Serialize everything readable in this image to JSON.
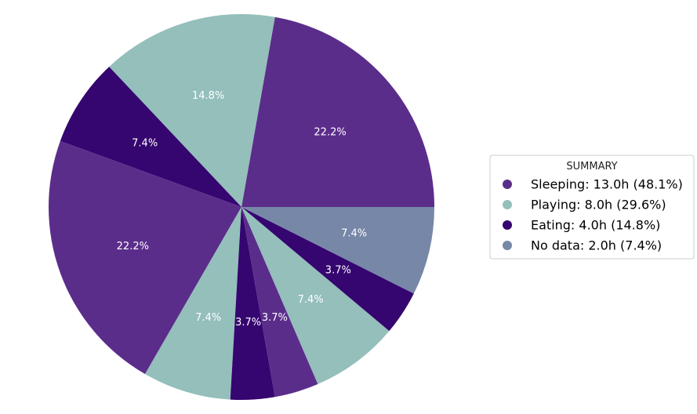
{
  "chart_data": {
    "type": "pie",
    "start_angle_deg": 0,
    "direction": "counterclockwise",
    "slices": [
      {
        "category": "Sleeping",
        "hours": 6.0,
        "label": "22.2%"
      },
      {
        "category": "Playing",
        "hours": 4.0,
        "label": "14.8%"
      },
      {
        "category": "Eating",
        "hours": 2.0,
        "label": "7.4%"
      },
      {
        "category": "Sleeping",
        "hours": 6.0,
        "label": "22.2%"
      },
      {
        "category": "Playing",
        "hours": 2.0,
        "label": "7.4%"
      },
      {
        "category": "Eating",
        "hours": 1.0,
        "label": "3.7%"
      },
      {
        "category": "Sleeping",
        "hours": 1.0,
        "label": "3.7%"
      },
      {
        "category": "Playing",
        "hours": 2.0,
        "label": "7.4%"
      },
      {
        "category": "Eating",
        "hours": 1.0,
        "label": "3.7%"
      },
      {
        "category": "No data",
        "hours": 2.0,
        "label": "7.4%"
      }
    ],
    "colors": {
      "Sleeping": "#5b2d8b",
      "Playing": "#94bfbb",
      "Eating": "#350570",
      "No data": "#7787a7"
    },
    "legend": {
      "title": "SUMMARY",
      "position": "right",
      "entries": [
        {
          "category": "Sleeping",
          "text": "Sleeping: 13.0h (48.1%)"
        },
        {
          "category": "Playing",
          "text": "Playing: 8.0h (29.6%)"
        },
        {
          "category": "Eating",
          "text": "Eating: 4.0h (14.8%)"
        },
        {
          "category": "No data",
          "text": "No data: 2.0h (7.4%)"
        }
      ]
    }
  }
}
